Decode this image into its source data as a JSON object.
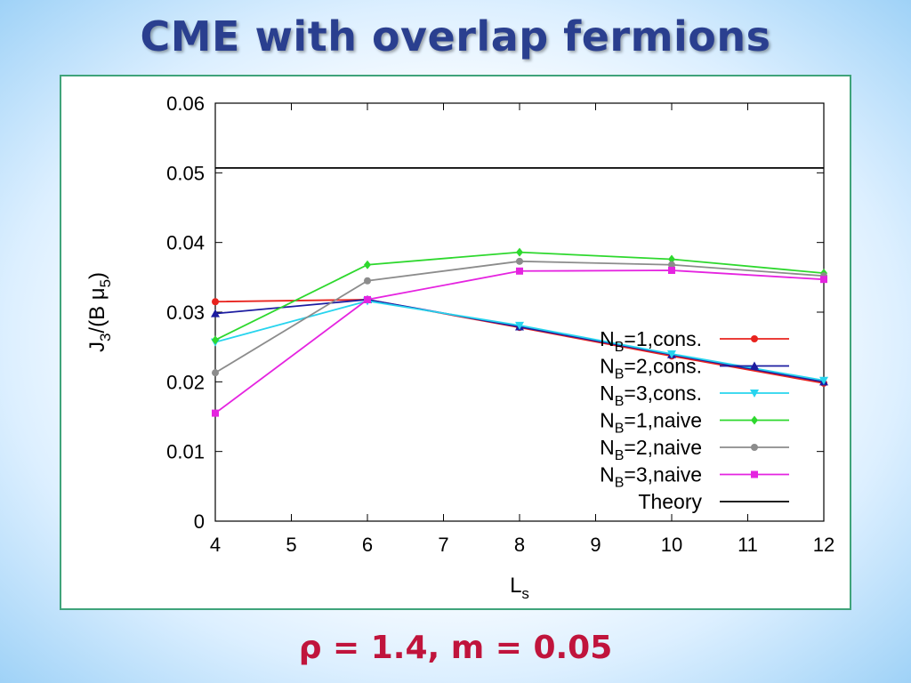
{
  "slide": {
    "title": "CME with overlap fermions",
    "subtitle": "ρ = 1.4, m = 0.05"
  },
  "chart_data": {
    "type": "line",
    "xlabel_base": "L",
    "xlabel_sub": "s",
    "ylabel_base": "J",
    "ylabel_sub1": "3",
    "ylabel_mid": "/(B μ",
    "ylabel_sub2": "5",
    "ylabel_end": ")",
    "xlim": [
      4,
      12
    ],
    "ylim": [
      0,
      0.06
    ],
    "xticks": [
      4,
      5,
      6,
      7,
      8,
      9,
      10,
      11,
      12
    ],
    "yticks": [
      0,
      0.01,
      0.02,
      0.03,
      0.04,
      0.05,
      0.06
    ],
    "ytick_labels": [
      "0",
      "0.01",
      "0.02",
      "0.03",
      "0.04",
      "0.05",
      "0.06"
    ],
    "legend_position": "right",
    "series": [
      {
        "name_base": "N",
        "name_sub": "B",
        "name_rest": "=1,cons.",
        "color": "#e8231e",
        "marker": "circle",
        "x": [
          4,
          6,
          8,
          10,
          12
        ],
        "y": [
          0.0315,
          0.0318,
          0.0278,
          0.0237,
          0.0198
        ]
      },
      {
        "name_base": "N",
        "name_sub": "B",
        "name_rest": "=2,cons.",
        "color": "#1c1ca0",
        "marker": "triangle",
        "x": [
          4,
          6,
          8,
          10,
          12
        ],
        "y": [
          0.0298,
          0.0318,
          0.0279,
          0.0239,
          0.02
        ]
      },
      {
        "name_base": "N",
        "name_sub": "B",
        "name_rest": "=3,cons.",
        "color": "#27d4ee",
        "marker": "triangle-down",
        "x": [
          4,
          6,
          8,
          10,
          12
        ],
        "y": [
          0.0257,
          0.0316,
          0.0281,
          0.024,
          0.0202
        ]
      },
      {
        "name_base": "N",
        "name_sub": "B",
        "name_rest": "=1,naive",
        "color": "#2ed82e",
        "marker": "diamond",
        "x": [
          4,
          6,
          8,
          10,
          12
        ],
        "y": [
          0.026,
          0.0368,
          0.0386,
          0.0376,
          0.0356
        ]
      },
      {
        "name_base": "N",
        "name_sub": "B",
        "name_rest": "=2,naive",
        "color": "#8c8c8c",
        "marker": "circle",
        "x": [
          4,
          6,
          8,
          10,
          12
        ],
        "y": [
          0.0213,
          0.0345,
          0.0373,
          0.0368,
          0.0352
        ]
      },
      {
        "name_base": "N",
        "name_sub": "B",
        "name_rest": "=3,naive",
        "color": "#e524e0",
        "marker": "square",
        "x": [
          4,
          6,
          8,
          10,
          12
        ],
        "y": [
          0.0155,
          0.0318,
          0.0359,
          0.036,
          0.0347
        ]
      },
      {
        "name_base": "",
        "name_sub": "",
        "name_rest": "Theory",
        "color": "#000000",
        "marker": "none",
        "x": [
          4,
          12
        ],
        "y": [
          0.0507,
          0.0507
        ]
      }
    ]
  }
}
